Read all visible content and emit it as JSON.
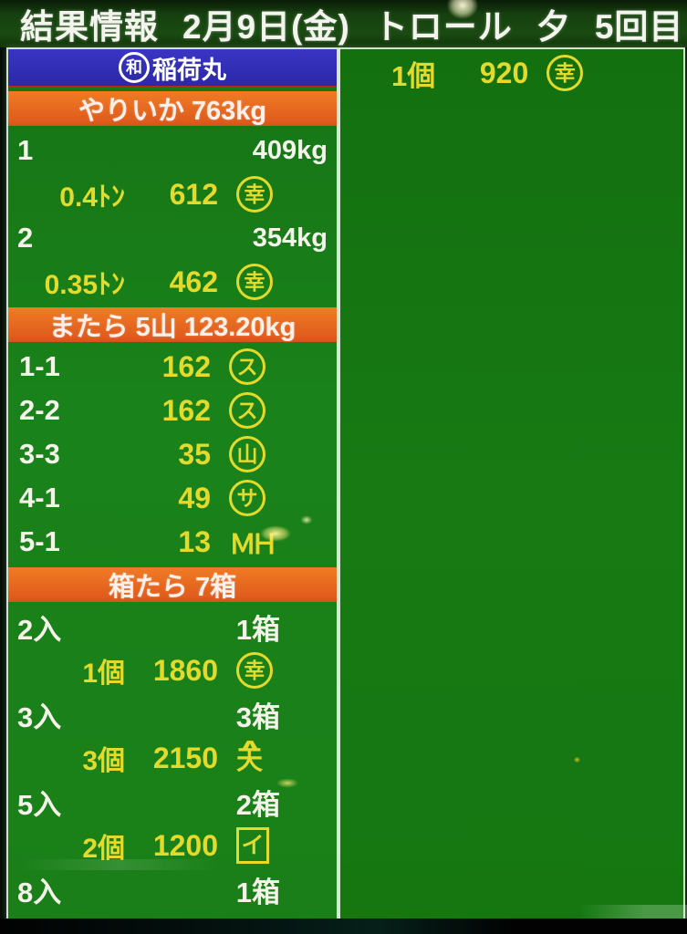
{
  "header": {
    "title": "結果情報",
    "date": "2月9日(金)",
    "gear": "トロール",
    "session": "夕",
    "round": "5回目"
  },
  "boat": {
    "mark": "和",
    "name": "稲荷丸"
  },
  "colors": {
    "panel_green": "#1a821a",
    "bar_orange": "#e05c1d",
    "header_blue": "#2b28a8",
    "text_yellow": "#e3da2b",
    "text_white": "#f3f3ea"
  },
  "left_rows": [
    {
      "kind": "species",
      "label": "やりいか 763kg"
    },
    {
      "kind": "lot",
      "no": "1",
      "weight": "409kg"
    },
    {
      "kind": "price",
      "qty": "0.4ﾄﾝ",
      "price": "612",
      "mark": "幸",
      "mark_shape": "circle"
    },
    {
      "kind": "lot",
      "no": "2",
      "weight": "354kg"
    },
    {
      "kind": "price",
      "qty": "0.35ﾄﾝ",
      "price": "462",
      "mark": "幸",
      "mark_shape": "circle"
    },
    {
      "kind": "species",
      "label": "またら 5山 123.20kg"
    },
    {
      "kind": "pile",
      "no": "1-1",
      "price": "162",
      "mark": "ス",
      "mark_shape": "circle"
    },
    {
      "kind": "pile",
      "no": "2-2",
      "price": "162",
      "mark": "ス",
      "mark_shape": "circle"
    },
    {
      "kind": "pile",
      "no": "3-3",
      "price": "35",
      "mark": "山",
      "mark_shape": "circle"
    },
    {
      "kind": "pile",
      "no": "4-1",
      "price": "49",
      "mark": "サ",
      "mark_shape": "circle"
    },
    {
      "kind": "pile",
      "no": "5-1",
      "price": "13",
      "mark": "ＭＨ",
      "mark_shape": "plain"
    },
    {
      "kind": "species",
      "label": "箱たら 7箱"
    },
    {
      "kind": "box",
      "no": "2入",
      "count": "1箱"
    },
    {
      "kind": "price",
      "qty": "1個",
      "price": "1860",
      "mark": "幸",
      "mark_shape": "circle"
    },
    {
      "kind": "box",
      "no": "3入",
      "count": "3箱"
    },
    {
      "kind": "price",
      "qty": "3個",
      "price": "2150",
      "mark": "天",
      "mark_top": "∧",
      "mark_shape": "roof"
    },
    {
      "kind": "box",
      "no": "5入",
      "count": "2箱"
    },
    {
      "kind": "price",
      "qty": "2個",
      "price": "1200",
      "mark": "イ",
      "mark_shape": "square"
    },
    {
      "kind": "box",
      "no": "8入",
      "count": "1箱"
    }
  ],
  "right_rows": [
    {
      "qty": "1個",
      "price": "920",
      "mark": "幸",
      "mark_shape": "circle"
    }
  ]
}
